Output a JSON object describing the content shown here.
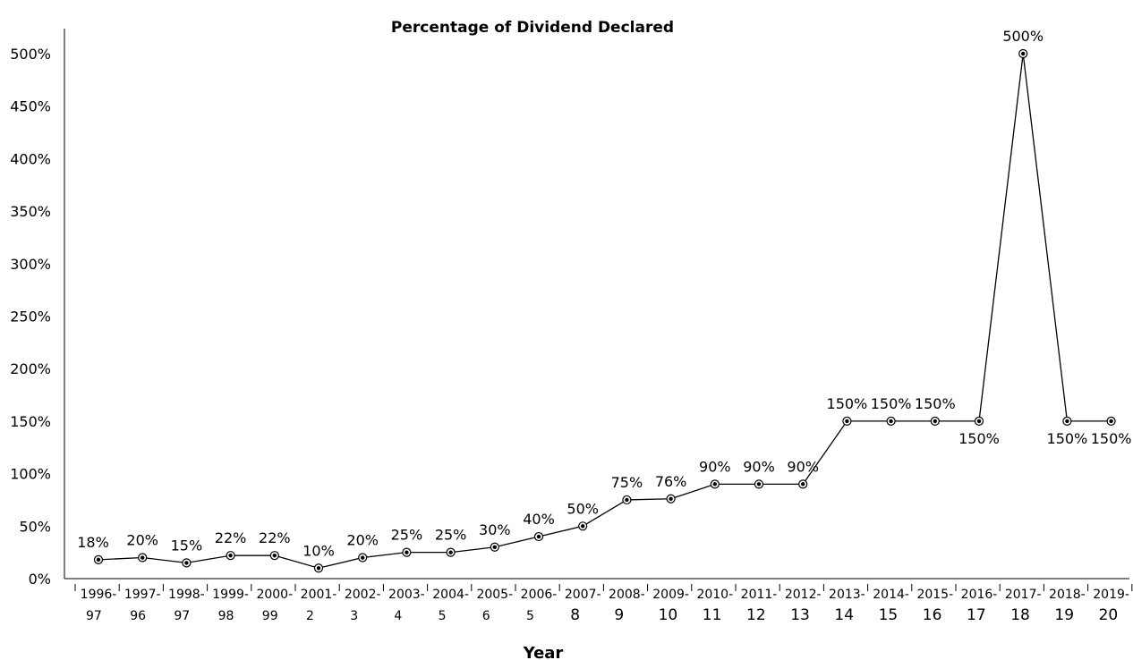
{
  "chart_data": {
    "type": "line",
    "title": "Percentage of Dividend Declared",
    "xlabel": "Year",
    "ylabel": "",
    "ylim": [
      0,
      500
    ],
    "y_ticks": [
      "0%",
      "50%",
      "100%",
      "150%",
      "200%",
      "250%",
      "300%",
      "350%",
      "400%",
      "450%",
      "500%"
    ],
    "categories": [
      [
        "1996-",
        "97"
      ],
      [
        "1997-",
        "96"
      ],
      [
        "1998-",
        "97"
      ],
      [
        "1999-",
        "98"
      ],
      [
        "2000-",
        "99"
      ],
      [
        "2001-",
        "2"
      ],
      [
        "2002-",
        "3"
      ],
      [
        "2003-",
        "4"
      ],
      [
        "2004-",
        "5"
      ],
      [
        "2005-",
        "6"
      ],
      [
        "2006-",
        "5"
      ],
      [
        "2007-",
        "8"
      ],
      [
        "2008-",
        "9"
      ],
      [
        "2009-",
        "10"
      ],
      [
        "2010-",
        "11"
      ],
      [
        "2011-",
        "12"
      ],
      [
        "2012-",
        "13"
      ],
      [
        "2013-",
        "14"
      ],
      [
        "2014-",
        "15"
      ],
      [
        "2015-",
        "16"
      ],
      [
        "2016-",
        "17"
      ],
      [
        "2017-",
        "18"
      ],
      [
        "2018-",
        "19"
      ],
      [
        "2019-",
        "20"
      ]
    ],
    "values": [
      18,
      20,
      15,
      22,
      22,
      10,
      20,
      25,
      25,
      30,
      40,
      50,
      75,
      76,
      90,
      90,
      90,
      150,
      150,
      150,
      150,
      500,
      150,
      150
    ],
    "data_labels": [
      "18%",
      "20%",
      "15%",
      "22%",
      "22%",
      "10%",
      "20%",
      "25%",
      "25%",
      "30%",
      "40%",
      "50%",
      "75%",
      "76%",
      "90%",
      "90%",
      "90%",
      "150%",
      "150%",
      "150%",
      "150%",
      "500%",
      "150%",
      "150%"
    ],
    "grid": false,
    "legend": "none"
  }
}
